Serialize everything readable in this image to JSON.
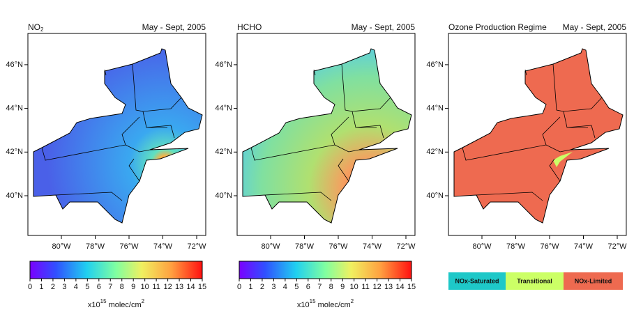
{
  "panels": [
    {
      "title": "NO",
      "title_sub": "2",
      "date": "May - Sept, 2005",
      "xticks": [
        "80°W",
        "78°W",
        "76°W",
        "74°W",
        "72°W"
      ],
      "yticks": [
        "40°N",
        "42°N",
        "44°N",
        "46°N"
      ],
      "colorbar": {
        "ticks": [
          0,
          1,
          2,
          3,
          4,
          5,
          6,
          7,
          8,
          9,
          10,
          11,
          12,
          13,
          14,
          15
        ],
        "lim": [
          0,
          15
        ],
        "label": "x10",
        "label_exp": "15",
        "unit": " molec/cm",
        "unit_exp": "2"
      }
    },
    {
      "title": "HCHO",
      "date": "May - Sept, 2005",
      "xticks": [
        "80°W",
        "78°W",
        "76°W",
        "74°W",
        "72°W"
      ],
      "yticks": [
        "40°N",
        "42°N",
        "44°N",
        "46°N"
      ],
      "colorbar": {
        "ticks": [
          0,
          1,
          2,
          3,
          4,
          5,
          6,
          7,
          8,
          9,
          10,
          11,
          12,
          13,
          14,
          15
        ],
        "lim": [
          0,
          15
        ],
        "label": "x10",
        "label_exp": "15",
        "unit": " molec/cm",
        "unit_exp": "2"
      }
    },
    {
      "title": "Ozone Production Regime",
      "date": "May - Sept, 2005",
      "xticks": [
        "80°W",
        "78°W",
        "76°W",
        "74°W",
        "72°W"
      ],
      "yticks": [
        "40°N",
        "42°N",
        "44°N",
        "46°N"
      ],
      "legend": [
        {
          "name": "NOx-Saturated",
          "color": "#1ec8c8"
        },
        {
          "name": "Transitional",
          "color": "#ccff66"
        },
        {
          "name": "NOx-Limited",
          "color": "#ee6a50"
        }
      ]
    }
  ]
}
